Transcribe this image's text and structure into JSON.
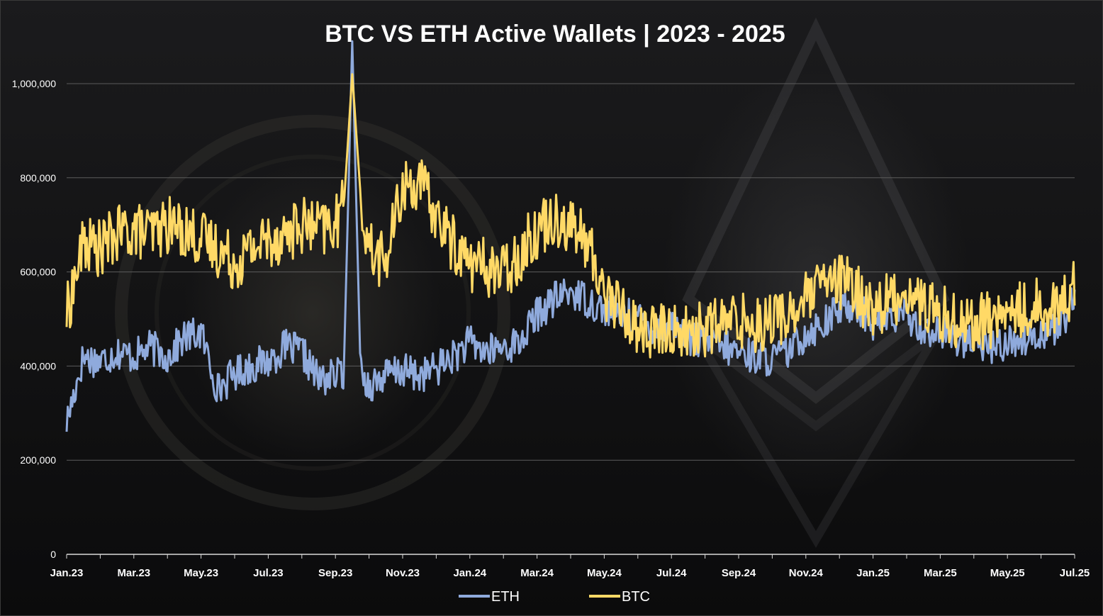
{
  "chart_data": {
    "type": "line",
    "title": "BTC VS ETH Active Wallets | 2023 - 2025",
    "xlabel": "",
    "ylabel": "",
    "ylim": [
      0,
      1000000
    ],
    "y_ticks": [
      {
        "value": 0,
        "label": "0"
      },
      {
        "value": 200000,
        "label": "200,000"
      },
      {
        "value": 400000,
        "label": "400,000"
      },
      {
        "value": 600000,
        "label": "600,000"
      },
      {
        "value": 800000,
        "label": "800,000"
      },
      {
        "value": 1000000,
        "label": "1,000,000"
      }
    ],
    "x_ticks": [
      {
        "month": 0,
        "label": "Jan.23"
      },
      {
        "month": 2,
        "label": "Mar.23"
      },
      {
        "month": 4,
        "label": "May.23"
      },
      {
        "month": 6,
        "label": "Jul.23"
      },
      {
        "month": 8,
        "label": "Sep.23"
      },
      {
        "month": 10,
        "label": "Nov.23"
      },
      {
        "month": 12,
        "label": "Jan.24"
      },
      {
        "month": 14,
        "label": "Mar.24"
      },
      {
        "month": 16,
        "label": "May.24"
      },
      {
        "month": 18,
        "label": "Jul.24"
      },
      {
        "month": 20,
        "label": "Sep.24"
      },
      {
        "month": 22,
        "label": "Nov.24"
      },
      {
        "month": 24,
        "label": "Jan.25"
      },
      {
        "month": 26,
        "label": "Mar.25"
      },
      {
        "month": 28,
        "label": "May.25"
      },
      {
        "month": 30,
        "label": "Jul.25"
      }
    ],
    "x_range_months": [
      0,
      30
    ],
    "grid": true,
    "legend_position": "bottom-center",
    "series": [
      {
        "name": "ETH",
        "color": "#8faadc",
        "x_months": [
          0,
          0.5,
          1,
          1.5,
          2,
          2.5,
          3,
          3.5,
          4,
          4.5,
          5,
          5.5,
          6,
          6.5,
          7,
          7.5,
          8,
          8.25,
          8.5,
          8.75,
          9,
          9.5,
          10,
          10.5,
          11,
          11.5,
          12,
          12.5,
          13,
          13.5,
          14,
          14.5,
          15,
          15.5,
          16,
          16.5,
          17,
          17.5,
          18,
          18.5,
          19,
          19.5,
          20,
          20.5,
          21,
          21.5,
          22,
          22.5,
          23,
          23.5,
          24,
          24.5,
          25,
          25.5,
          26,
          26.5,
          27,
          27.5,
          28,
          28.5,
          29,
          29.5,
          30
        ],
        "values": [
          280000,
          420000,
          410000,
          430000,
          420000,
          440000,
          420000,
          460000,
          470000,
          350000,
          385000,
          400000,
          410000,
          440000,
          430000,
          370000,
          380000,
          390000,
          1090000,
          380000,
          360000,
          380000,
          390000,
          380000,
          395000,
          420000,
          450000,
          430000,
          440000,
          450000,
          510000,
          540000,
          560000,
          540000,
          520000,
          510000,
          500000,
          480000,
          490000,
          460000,
          450000,
          440000,
          430000,
          420000,
          415000,
          430000,
          470000,
          490000,
          520000,
          530000,
          490000,
          500000,
          510000,
          480000,
          470000,
          460000,
          450000,
          440000,
          450000,
          460000,
          470000,
          480000,
          540000
        ]
      },
      {
        "name": "BTC",
        "color": "#ffd966",
        "x_months": [
          0,
          0.5,
          1,
          1.5,
          2,
          2.5,
          3,
          3.5,
          4,
          4.5,
          5,
          5.5,
          6,
          6.5,
          7,
          7.5,
          8,
          8.25,
          8.5,
          8.75,
          9,
          9.5,
          10,
          10.5,
          11,
          11.5,
          12,
          12.5,
          13,
          13.5,
          14,
          14.5,
          15,
          15.5,
          16,
          16.5,
          17,
          17.5,
          18,
          18.5,
          19,
          19.5,
          20,
          20.5,
          21,
          21.5,
          22,
          22.5,
          23,
          23.5,
          24,
          24.5,
          25,
          25.5,
          26,
          26.5,
          27,
          27.5,
          28,
          28.5,
          29,
          29.5,
          30
        ],
        "values": [
          510000,
          660000,
          650000,
          680000,
          690000,
          680000,
          700000,
          690000,
          670000,
          650000,
          620000,
          650000,
          670000,
          680000,
          700000,
          690000,
          700000,
          740000,
          1020000,
          760000,
          650000,
          620000,
          780000,
          790000,
          720000,
          660000,
          620000,
          610000,
          600000,
          640000,
          690000,
          720000,
          700000,
          660000,
          560000,
          520000,
          480000,
          470000,
          480000,
          470000,
          480000,
          490000,
          500000,
          490000,
          500000,
          510000,
          540000,
          570000,
          580000,
          560000,
          520000,
          540000,
          560000,
          530000,
          510000,
          500000,
          490000,
          500000,
          510000,
          520000,
          530000,
          520000,
          570000
        ]
      }
    ]
  }
}
